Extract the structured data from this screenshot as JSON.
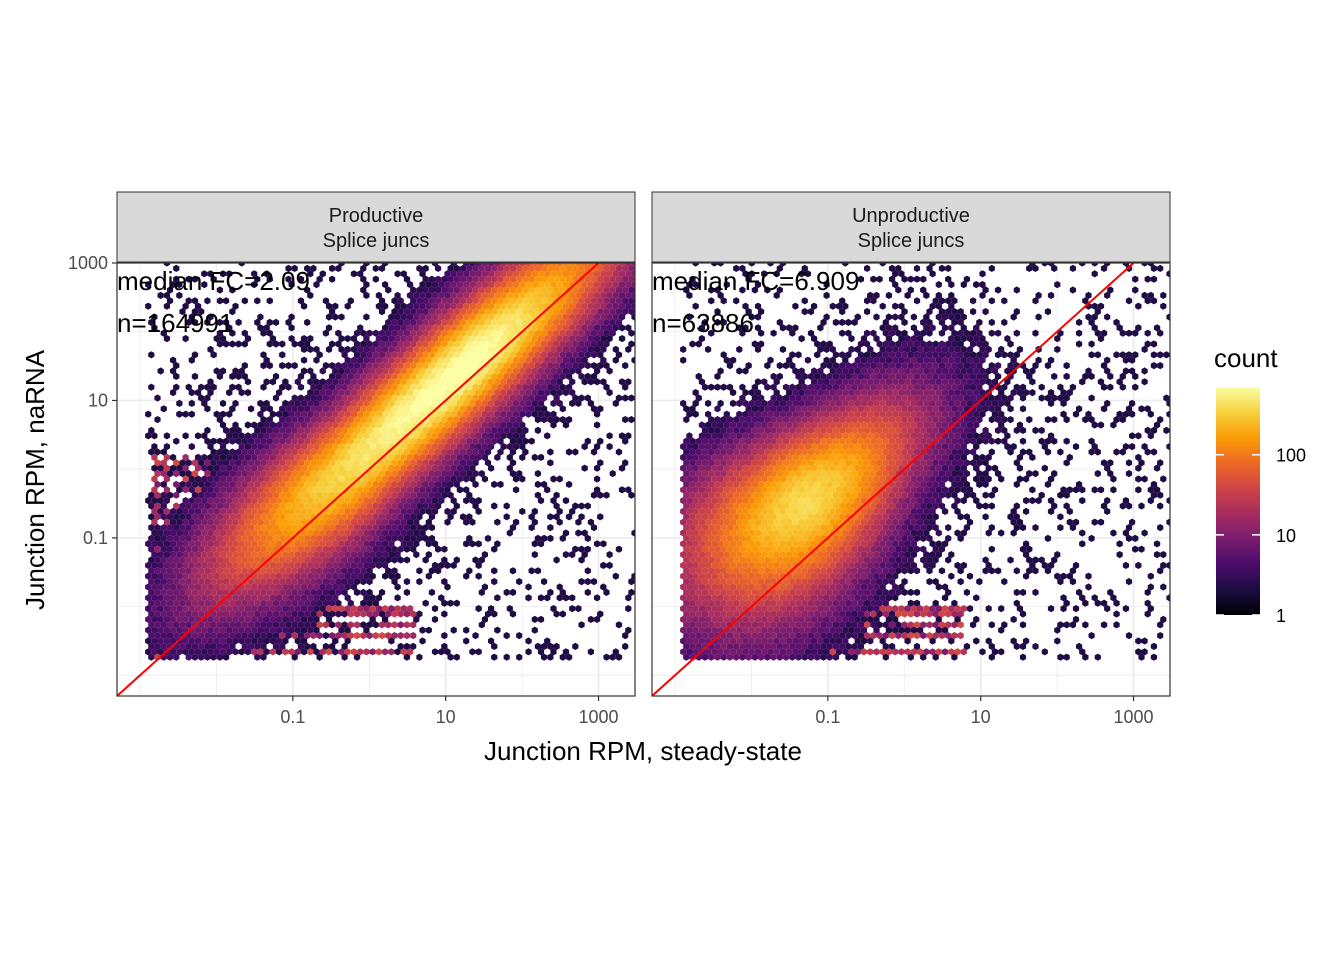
{
  "chart_data": {
    "type": "hexbin",
    "x_scale": "log10",
    "y_scale": "log10",
    "xlabel": "Junction RPM, steady-state",
    "ylabel": "Junction RPM, naRNA",
    "x_ticks": [
      {
        "value": 0.1,
        "label": "0.1"
      },
      {
        "value": 10,
        "label": "10"
      },
      {
        "value": 1000,
        "label": "1000"
      }
    ],
    "y_ticks": [
      {
        "value": 0.1,
        "label": "0.1"
      },
      {
        "value": 10,
        "label": "10"
      },
      {
        "value": 1000,
        "label": "1000"
      }
    ],
    "xlim": [
      0.0005,
      3000
    ],
    "ylim": [
      0.0005,
      1000
    ],
    "grid": true,
    "reference_line": {
      "slope": 1,
      "intercept": 0,
      "color": "#ff0000"
    },
    "legend": {
      "title": "count",
      "position": "right",
      "scale": "log10",
      "ticks": [
        "1",
        "10",
        "100"
      ],
      "range": [
        1,
        700
      ],
      "palette": [
        "#000004",
        "#1b0c41",
        "#4a0c6b",
        "#781c6d",
        "#a52c60",
        "#cf4446",
        "#ed6925",
        "#fb9b06",
        "#f7d13d",
        "#fcffa4"
      ]
    },
    "panels": [
      {
        "strip_line1": "Productive",
        "strip_line2": "Splice juncs",
        "median_fc": "median FC=2.09",
        "n": "n=164991",
        "density_center_log10": [
          1.3,
          1.5
        ],
        "density_spread": "broad diagonal cloud above y=x"
      },
      {
        "strip_line1": "Unproductive",
        "strip_line2": "Splice juncs",
        "median_fc": "median FC=6.909",
        "n": "n=63886",
        "density_center_log10": [
          -1.4,
          -0.8
        ],
        "density_spread": "cloud mostly above y=x at low steady-state"
      }
    ]
  }
}
